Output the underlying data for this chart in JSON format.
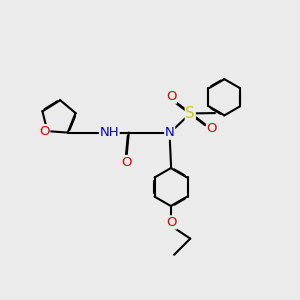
{
  "background_color": "#ebebeb",
  "bond_color": "#000000",
  "bond_lw": 1.5,
  "dbo": 0.012,
  "atom_colors": {
    "O": "#e00000",
    "N": "#0000cc",
    "S": "#cccc00",
    "C": "#000000"
  },
  "afs": 9.5
}
